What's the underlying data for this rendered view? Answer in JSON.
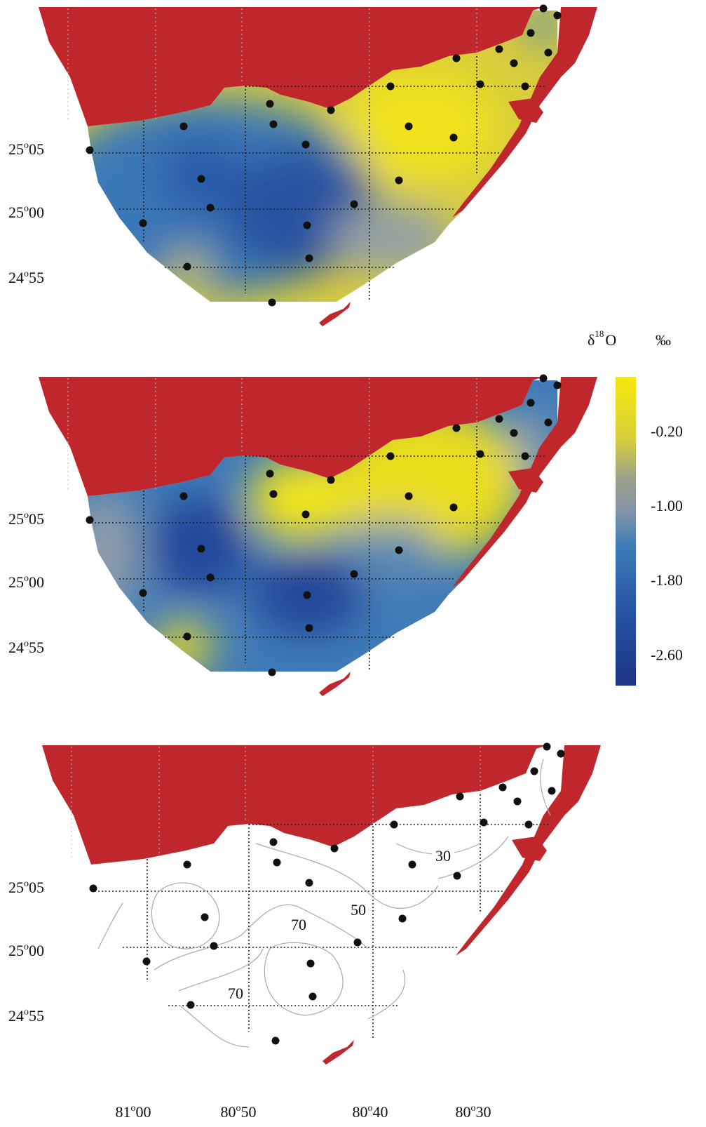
{
  "panels": [
    {
      "lat_labels": [
        {
          "deg": "25",
          "sup": "o",
          "min": "05"
        },
        {
          "deg": "25",
          "sup": "o",
          "min": "00"
        },
        {
          "deg": "24",
          "sup": "o",
          "min": "55"
        }
      ]
    },
    {
      "lat_labels": [
        {
          "deg": "25",
          "sup": "o",
          "min": "05"
        },
        {
          "deg": "25",
          "sup": "o",
          "min": "00"
        },
        {
          "deg": "24",
          "sup": "o",
          "min": "55"
        }
      ]
    },
    {
      "lat_labels": [
        {
          "deg": "25",
          "sup": "o",
          "min": "05"
        },
        {
          "deg": "25",
          "sup": "o",
          "min": "00"
        },
        {
          "deg": "24",
          "sup": "o",
          "min": "55"
        }
      ],
      "contour_labels": [
        "30",
        "50",
        "70",
        "70"
      ]
    }
  ],
  "lon_labels": [
    {
      "deg": "81",
      "sup": "o",
      "min": "00"
    },
    {
      "deg": "80",
      "sup": "o",
      "min": "50"
    },
    {
      "deg": "80",
      "sup": "o",
      "min": "40"
    },
    {
      "deg": "80",
      "sup": "o",
      "min": "30"
    }
  ],
  "colorbar": {
    "title": {
      "symbol": "δ",
      "sup": "18",
      "element": "O"
    },
    "unit": "‰",
    "range": [
      -2.93,
      0.39
    ],
    "ticks": [
      {
        "value": -0.2,
        "label": "-0.20"
      },
      {
        "value": -1.0,
        "label": "-1.00"
      },
      {
        "value": -1.8,
        "label": "-1.80"
      },
      {
        "value": -2.6,
        "label": "-2.60"
      }
    ]
  }
}
